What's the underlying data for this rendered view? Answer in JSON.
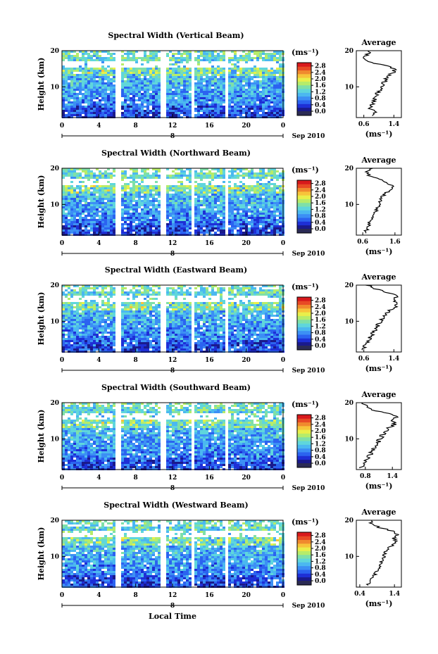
{
  "figure": {
    "x_axis_title": "Local Time",
    "date_label": "Sep 2010",
    "day_label": "8",
    "units_label": "(ms⁻¹)",
    "average_title": "Average",
    "y_axis_title": "Height (km)"
  },
  "colors": {
    "colormap": [
      "#1a1a8c",
      "#1e2fd6",
      "#2b63f0",
      "#3c8ff5",
      "#4bb8f0",
      "#5fd6dc",
      "#7fe0a8",
      "#b6ec6a",
      "#e9ef4a",
      "#f7c43a",
      "#f08a2e",
      "#e84a25",
      "#d8191c"
    ],
    "floor_color": "#2b2b55"
  },
  "chart_data": [
    {
      "type": "heatmap",
      "title": "Spectral Width (Vertical Beam)",
      "x_ticks": [
        "0",
        "4",
        "8",
        "12",
        "16",
        "20",
        "0"
      ],
      "y_ticks": [
        "20",
        "10"
      ],
      "xlim": [
        0,
        24
      ],
      "ylim": [
        1.5,
        20
      ],
      "colorbar_ticks": [
        "2.8",
        "2.4",
        "2.0",
        "1.6",
        "1.2",
        "0.8",
        "0.4",
        "0.0"
      ],
      "colorbar_range": [
        0.0,
        3.0
      ],
      "data_gaps_hours": [
        [
          5.6,
          6.2
        ],
        [
          10.7,
          11.2
        ],
        [
          13.8,
          14.3
        ],
        [
          17.5,
          18.0
        ]
      ],
      "profile": {
        "title": "Average",
        "x_ticks": [
          "0.6",
          "1.4"
        ],
        "xlim": [
          0.4,
          1.6
        ],
        "y_ticks": [
          "20",
          "10"
        ],
        "ylim": [
          1.5,
          20
        ],
        "xlabel": "(ms⁻¹)",
        "height_km": [
          2,
          3,
          4,
          5,
          6,
          7,
          8,
          9,
          10,
          11,
          12,
          13,
          14,
          15,
          16,
          17,
          18,
          19,
          20
        ],
        "width": [
          0.8,
          0.9,
          0.78,
          0.82,
          0.88,
          0.9,
          0.95,
          1.02,
          1.08,
          1.13,
          1.18,
          1.25,
          1.38,
          1.44,
          1.12,
          0.72,
          0.62,
          0.7,
          0.75
        ]
      }
    },
    {
      "type": "heatmap",
      "title": "Spectral Width (Northward Beam)",
      "x_ticks": [
        "0",
        "4",
        "8",
        "12",
        "16",
        "20",
        "0"
      ],
      "y_ticks": [
        "20",
        "10"
      ],
      "xlim": [
        0,
        24
      ],
      "ylim": [
        1.5,
        20
      ],
      "colorbar_ticks": [
        "2.8",
        "2.4",
        "2.0",
        "1.6",
        "1.2",
        "0.8",
        "0.4",
        "0.0"
      ],
      "colorbar_range": [
        0.0,
        3.0
      ],
      "data_gaps_hours": [
        [
          5.6,
          6.2
        ],
        [
          10.7,
          11.2
        ],
        [
          13.8,
          14.3
        ],
        [
          17.5,
          18.0
        ]
      ],
      "profile": {
        "title": "Average",
        "x_ticks": [
          "0.6",
          "1.6"
        ],
        "xlim": [
          0.4,
          1.8
        ],
        "y_ticks": [
          "20",
          "10"
        ],
        "ylim": [
          1.5,
          20
        ],
        "xlabel": "(ms⁻¹)",
        "height_km": [
          2,
          3,
          4,
          5,
          6,
          7,
          8,
          9,
          10,
          11,
          12,
          13,
          14,
          15,
          16,
          17,
          18,
          19,
          20
        ],
        "width": [
          0.65,
          0.72,
          0.78,
          0.82,
          0.88,
          0.94,
          1.0,
          1.05,
          1.1,
          1.15,
          1.2,
          1.3,
          1.45,
          1.55,
          1.3,
          1.1,
          0.8,
          0.7,
          0.9
        ]
      }
    },
    {
      "type": "heatmap",
      "title": "Spectral Width (Eastward Beam)",
      "x_ticks": [
        "0",
        "4",
        "8",
        "12",
        "16",
        "20",
        "0"
      ],
      "y_ticks": [
        "20",
        "10"
      ],
      "xlim": [
        0,
        24
      ],
      "ylim": [
        1.5,
        20
      ],
      "colorbar_ticks": [
        "2.8",
        "2.4",
        "2.0",
        "1.6",
        "1.2",
        "0.8",
        "0.4",
        "0.0"
      ],
      "colorbar_range": [
        0.0,
        3.0
      ],
      "data_gaps_hours": [
        [
          5.6,
          6.2
        ],
        [
          10.7,
          11.2
        ],
        [
          13.8,
          14.3
        ],
        [
          17.5,
          18.0
        ]
      ],
      "profile": {
        "title": "Average",
        "x_ticks": [
          "0.6",
          "1.4"
        ],
        "xlim": [
          0.4,
          1.6
        ],
        "y_ticks": [
          "20",
          "10"
        ],
        "ylim": [
          1.5,
          20
        ],
        "xlabel": "(ms⁻¹)",
        "height_km": [
          2,
          3,
          4,
          5,
          6,
          7,
          8,
          9,
          10,
          11,
          12,
          13,
          14,
          15,
          16,
          17,
          18,
          19,
          20
        ],
        "width": [
          0.55,
          0.62,
          0.68,
          0.74,
          0.8,
          0.86,
          0.92,
          0.98,
          1.04,
          1.1,
          1.18,
          1.3,
          1.45,
          1.52,
          1.38,
          1.5,
          1.2,
          0.9,
          0.7
        ]
      }
    },
    {
      "type": "heatmap",
      "title": "Spectral Width (Southward Beam)",
      "x_ticks": [
        "0",
        "4",
        "8",
        "12",
        "16",
        "20",
        "0"
      ],
      "y_ticks": [
        "20",
        "10"
      ],
      "xlim": [
        0,
        24
      ],
      "ylim": [
        1.5,
        20
      ],
      "colorbar_ticks": [
        "2.8",
        "2.4",
        "2.0",
        "1.6",
        "1.2",
        "0.8",
        "0.4",
        "0.0"
      ],
      "colorbar_range": [
        0.0,
        3.0
      ],
      "data_gaps_hours": [
        [
          5.6,
          6.2
        ],
        [
          10.7,
          11.2
        ],
        [
          13.8,
          14.3
        ],
        [
          17.5,
          18.0
        ]
      ],
      "profile": {
        "title": "Average",
        "x_ticks": [
          "0.8",
          "1.4"
        ],
        "xlim": [
          0.6,
          1.6
        ],
        "y_ticks": [
          "20",
          "10"
        ],
        "ylim": [
          1.5,
          20
        ],
        "xlabel": "(ms⁻¹)",
        "height_km": [
          2,
          3,
          4,
          5,
          6,
          7,
          8,
          9,
          10,
          11,
          12,
          13,
          14,
          15,
          16,
          17,
          18,
          19,
          20
        ],
        "width": [
          0.7,
          0.76,
          0.82,
          0.88,
          0.93,
          0.98,
          1.03,
          1.08,
          1.13,
          1.18,
          1.24,
          1.32,
          1.45,
          1.38,
          1.5,
          1.28,
          0.98,
          0.8,
          0.72
        ]
      }
    },
    {
      "type": "heatmap",
      "title": "Spectral Width (Westward Beam)",
      "x_ticks": [
        "0",
        "4",
        "8",
        "12",
        "16",
        "20",
        "0"
      ],
      "y_ticks": [
        "20",
        "10"
      ],
      "xlim": [
        0,
        24
      ],
      "ylim": [
        1.5,
        20
      ],
      "colorbar_ticks": [
        "2.8",
        "2.4",
        "2.0",
        "1.6",
        "1.2",
        "0.8",
        "0.4",
        "0.0"
      ],
      "colorbar_range": [
        0.0,
        3.0
      ],
      "data_gaps_hours": [
        [
          5.6,
          6.2
        ],
        [
          10.7,
          11.2
        ],
        [
          13.8,
          14.3
        ],
        [
          17.5,
          18.0
        ]
      ],
      "profile": {
        "title": "Average",
        "x_ticks": [
          "0.4",
          "1.4"
        ],
        "xlim": [
          0.3,
          1.6
        ],
        "y_ticks": [
          "20",
          "10"
        ],
        "ylim": [
          1.5,
          20
        ],
        "xlabel": "(ms⁻¹)",
        "height_km": [
          2,
          3,
          4,
          5,
          6,
          7,
          8,
          9,
          10,
          11,
          12,
          13,
          14,
          15,
          16,
          17,
          18,
          19,
          20
        ],
        "width": [
          0.6,
          0.7,
          0.78,
          0.84,
          0.9,
          0.95,
          1.0,
          1.05,
          1.1,
          1.15,
          1.2,
          1.32,
          1.45,
          1.38,
          1.48,
          1.35,
          0.95,
          0.75,
          0.7
        ]
      }
    }
  ]
}
